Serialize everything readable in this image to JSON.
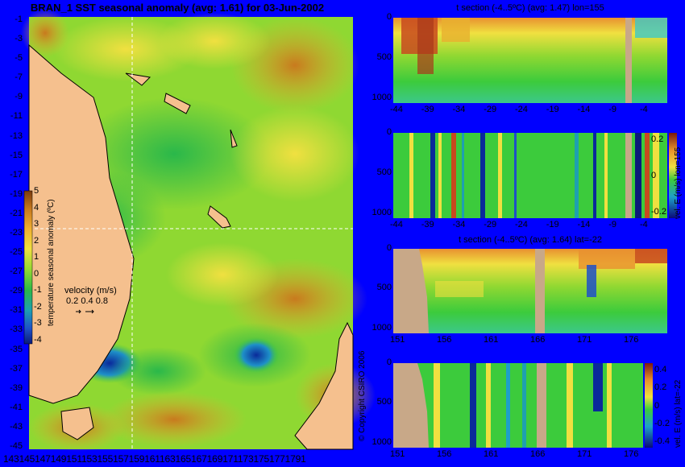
{
  "map": {
    "title": "BRAN_1 SST seasonal anomaly (avg: 1.61) for 03-Jun-2002",
    "lat_ticks": [
      "-1",
      "-3",
      "-5",
      "-7",
      "-9",
      "-11",
      "-13",
      "-15",
      "-17",
      "-19",
      "-21",
      "-23",
      "-25",
      "-27",
      "-29",
      "-31",
      "-33",
      "-35",
      "-37",
      "-39",
      "-41",
      "-43",
      "-45"
    ],
    "lon_axis_text": "1431451471491511531551571591611631651671691711731751771791",
    "colorbar": {
      "label": "temperature seasonal anomaly (ºC)",
      "ticks": [
        "5",
        "4",
        "3",
        "2",
        "1",
        "0",
        "-1",
        "-2",
        "-3",
        "-4"
      ]
    },
    "velocity_legend": {
      "title": "velocity (m/s)",
      "values": "0.2 0.4 0.8"
    }
  },
  "panels": [
    {
      "id": "t-lon",
      "title": "t section (-4..5ºC) (avg: 1.47) lon=155",
      "y_ticks": [
        "0",
        "500",
        "1000"
      ],
      "x_ticks": [
        "-44",
        "-39",
        "-34",
        "-29",
        "-24",
        "-19",
        "-14",
        "-9",
        "-4"
      ]
    },
    {
      "id": "v-lon",
      "title": "",
      "y_ticks": [
        "0",
        "500",
        "1000"
      ],
      "x_ticks": [
        "-44",
        "-39",
        "-34",
        "-29",
        "-24",
        "-19",
        "-14",
        "-9",
        "-4"
      ],
      "colorbar_label": "vel. E (m/s) lon=155",
      "colorbar_ticks": [
        "0.2",
        "0",
        "-0.2"
      ]
    },
    {
      "id": "t-lat",
      "title": "t section (-4..5ºC) (avg: 1.64) lat=-22",
      "y_ticks": [
        "0",
        "500",
        "1000"
      ],
      "x_ticks": [
        "151",
        "156",
        "161",
        "166",
        "171",
        "176"
      ]
    },
    {
      "id": "v-lat",
      "title": "",
      "y_ticks": [
        "0",
        "500",
        "1000"
      ],
      "x_ticks": [
        "151",
        "156",
        "161",
        "166",
        "171",
        "176"
      ],
      "colorbar_label": "vel. E (m/s) lat=-22",
      "colorbar_ticks": [
        "0.4",
        "0.2",
        "0",
        "-0.2",
        "-0.4"
      ]
    }
  ],
  "copyright": "© Copyright CSIRO 2006",
  "colors": {
    "background": "#0000FF",
    "land": "#F5C08E",
    "ocean_mid": "#3CCB3C",
    "warm": "#C87A1E",
    "cold": "#0A2A9A",
    "seafloor": "#C8A888"
  },
  "chart_data": [
    {
      "type": "heatmap",
      "title": "BRAN_1 SST seasonal anomaly (avg: 1.61) for 03-Jun-2002",
      "xlabel": "",
      "ylabel": "",
      "xlim": [
        143,
        180
      ],
      "ylim": [
        -45,
        0
      ],
      "colorbar_range": [
        -4,
        5
      ],
      "colorbar_label": "temperature seasonal anomaly (ºC)",
      "grid": false
    },
    {
      "type": "heatmap",
      "title": "t section (-4..5ºC) (avg: 1.47) lon=155",
      "xlim": [
        -45,
        -1
      ],
      "ylim": [
        1050,
        0
      ],
      "average": 1.47
    },
    {
      "type": "heatmap",
      "title": "",
      "xlim": [
        -45,
        -1
      ],
      "ylim": [
        1050,
        0
      ],
      "colorbar_label": "vel. E (m/s) lon=155",
      "colorbar_range": [
        -0.3,
        0.3
      ]
    },
    {
      "type": "heatmap",
      "title": "t section (-4..5ºC) (avg: 1.64) lat=-22",
      "xlim": [
        149,
        181
      ],
      "ylim": [
        1050,
        0
      ],
      "average": 1.64
    },
    {
      "type": "heatmap",
      "title": "",
      "xlim": [
        149,
        181
      ],
      "ylim": [
        1050,
        0
      ],
      "colorbar_label": "vel. E (m/s) lat=-22",
      "colorbar_range": [
        -0.4,
        0.4
      ]
    }
  ]
}
